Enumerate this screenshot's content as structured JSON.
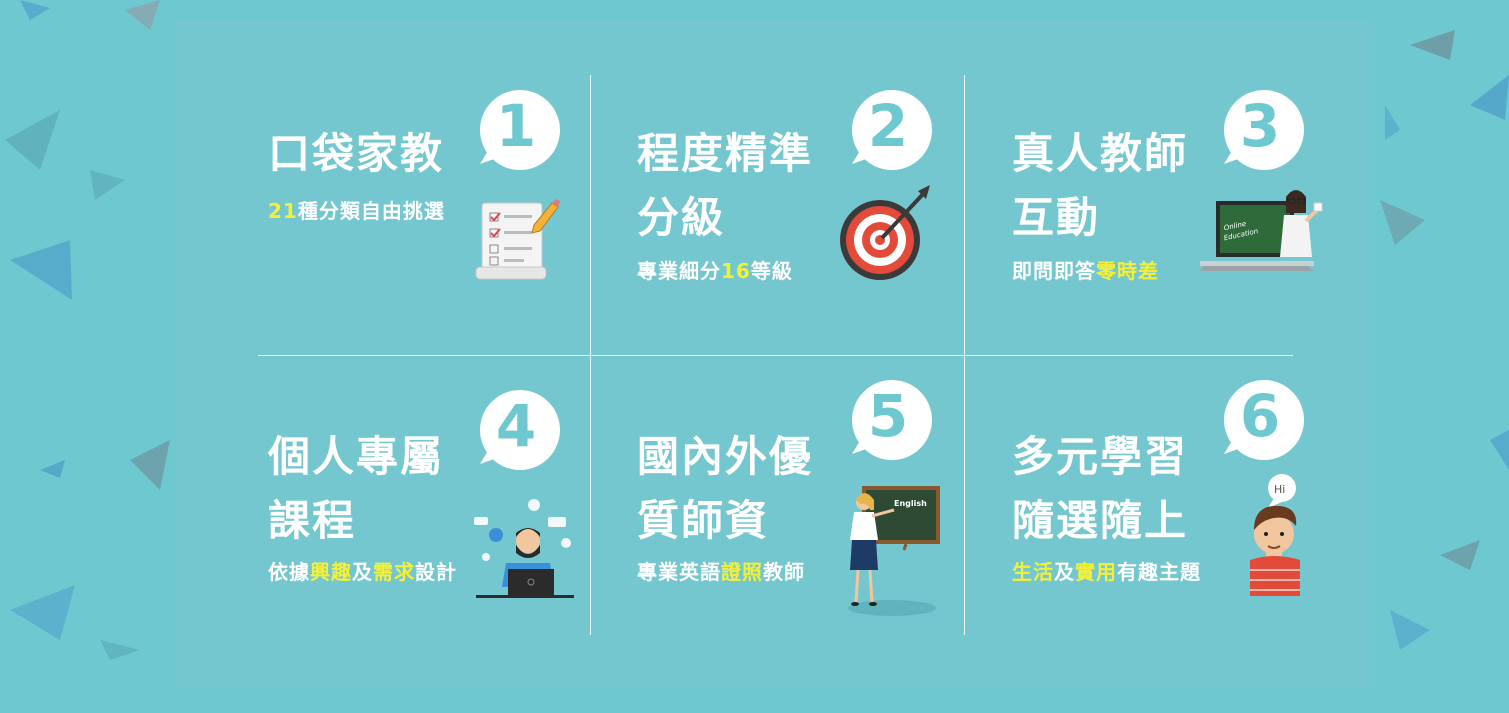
{
  "features": [
    {
      "number": "1",
      "title_lines": [
        "口袋家教"
      ],
      "subtitle": [
        {
          "t": "21",
          "hl": true
        },
        {
          "t": "種分類自由挑選",
          "hl": false
        }
      ],
      "icon": "checklist-icon"
    },
    {
      "number": "2",
      "title_lines": [
        "程度精準",
        "分級"
      ],
      "subtitle": [
        {
          "t": "專業細分",
          "hl": false
        },
        {
          "t": "16",
          "hl": true
        },
        {
          "t": "等級",
          "hl": false
        }
      ],
      "icon": "target-icon"
    },
    {
      "number": "3",
      "title_lines": [
        "真人教師",
        "互動"
      ],
      "subtitle": [
        {
          "t": "即問即答",
          "hl": false
        },
        {
          "t": "零時差",
          "hl": true
        }
      ],
      "icon": "laptop-teacher-icon",
      "icon_text": [
        "Online",
        "Education"
      ]
    },
    {
      "number": "4",
      "title_lines": [
        "個人專屬",
        "課程"
      ],
      "subtitle": [
        {
          "t": "依據",
          "hl": false
        },
        {
          "t": "興趣",
          "hl": true
        },
        {
          "t": "及",
          "hl": false
        },
        {
          "t": "需求",
          "hl": true
        },
        {
          "t": "設計",
          "hl": false
        }
      ],
      "icon": "designer-icon"
    },
    {
      "number": "5",
      "title_lines": [
        "國內外優",
        "質師資"
      ],
      "subtitle": [
        {
          "t": "專業英語",
          "hl": false
        },
        {
          "t": "證照",
          "hl": true
        },
        {
          "t": "教師",
          "hl": false
        }
      ],
      "icon": "teacher-chalkboard-icon",
      "icon_text": [
        "English"
      ]
    },
    {
      "number": "6",
      "title_lines": [
        "多元學習",
        "隨選隨上"
      ],
      "subtitle": [
        {
          "t": "生活",
          "hl": true
        },
        {
          "t": "及",
          "hl": false
        },
        {
          "t": "實用",
          "hl": true
        },
        {
          "t": "有趣主題",
          "hl": false
        }
      ],
      "icon": "student-hi-icon",
      "icon_text": [
        "Hi"
      ]
    }
  ],
  "colors": {
    "background": "#6ec8d0",
    "panel": "#74c7cf",
    "text": "#ffffff",
    "highlight": "#f4f03a"
  }
}
